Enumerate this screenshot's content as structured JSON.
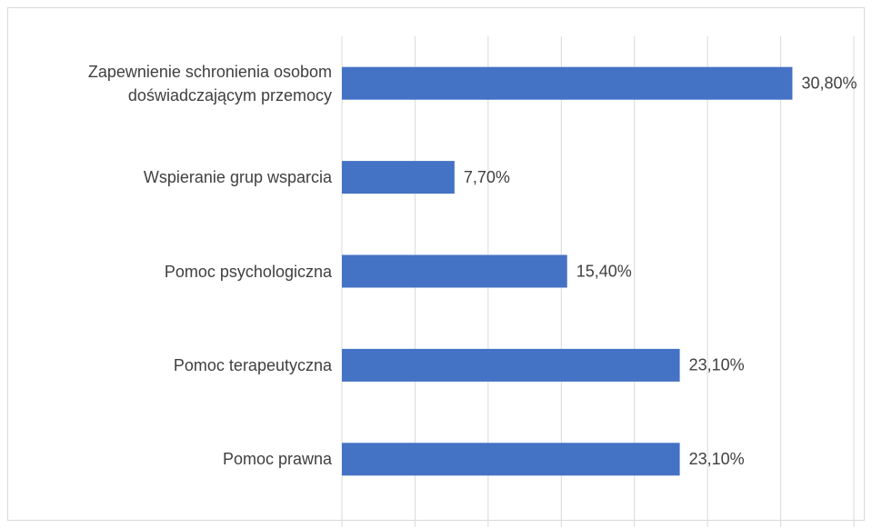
{
  "chart_data": {
    "type": "bar",
    "orientation": "horizontal",
    "categories": [
      "Zapewnienie schronienia osobom doświadczającym przemocy",
      "Wspieranie grup wsparcia",
      "Pomoc psychologiczna",
      "Pomoc terapeutyczna",
      "Pomoc prawna"
    ],
    "values": [
      30.8,
      7.7,
      15.4,
      23.1,
      23.1
    ],
    "value_labels": [
      "30,80%",
      "7,70%",
      "15,40%",
      "23,10%",
      "23,10%"
    ],
    "color": "#4472c4",
    "xlim": [
      0,
      35
    ],
    "xticks": [
      0,
      5,
      10,
      15,
      20,
      25,
      30,
      35
    ],
    "grid": true
  }
}
